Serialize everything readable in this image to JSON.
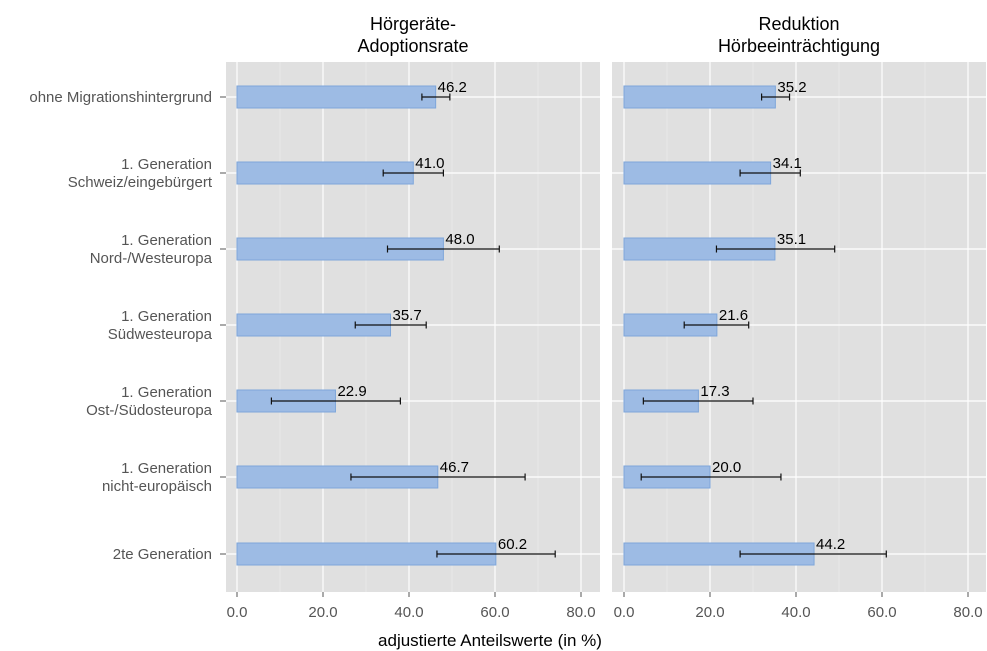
{
  "chart_data": {
    "type": "bar",
    "orientation": "horizontal",
    "xlabel": "adjustierte Anteilswerte (in %)",
    "xlim": [
      0,
      80
    ],
    "xticks": [
      "0.0",
      "20.0",
      "40.0",
      "60.0",
      "80.0"
    ],
    "grid": true,
    "categories": [
      [
        "ohne Migrationshintergrund"
      ],
      [
        "1. Generation",
        "Schweiz/eingebürgert"
      ],
      [
        "1. Generation",
        "Nord-/Westeuropa"
      ],
      [
        "1. Generation",
        "Südwesteuropa"
      ],
      [
        "1. Generation",
        "Ost-/Südosteuropa"
      ],
      [
        "1. Generation",
        "nicht-europäisch"
      ],
      [
        "2te Generation"
      ]
    ],
    "panels": [
      {
        "title": [
          "Hörgeräte-",
          "Adoptionsrate"
        ],
        "values": [
          46.2,
          41.0,
          48.0,
          35.7,
          22.9,
          46.7,
          60.2
        ],
        "labels": [
          "46.2",
          "41.0",
          "48.0",
          "35.7",
          "22.9",
          "46.7",
          "60.2"
        ],
        "ci_low": [
          43.0,
          34.0,
          35.0,
          27.5,
          8.0,
          26.5,
          46.5
        ],
        "ci_high": [
          49.5,
          48.0,
          61.0,
          44.0,
          38.0,
          67.0,
          74.0
        ]
      },
      {
        "title": [
          "Reduktion",
          "Hörbeeinträchtigung"
        ],
        "values": [
          35.2,
          34.1,
          35.1,
          21.6,
          17.3,
          20.0,
          44.2
        ],
        "labels": [
          "35.2",
          "34.1",
          "35.1",
          "21.6",
          "17.3",
          "20.0",
          "44.2"
        ],
        "ci_low": [
          32.0,
          27.0,
          21.5,
          14.0,
          4.5,
          4.0,
          27.0
        ],
        "ci_high": [
          38.5,
          41.0,
          49.0,
          29.0,
          30.0,
          36.5,
          61.0
        ]
      }
    ],
    "colors": {
      "bar": "#9dbbe4",
      "bar_edge": "#7ea6da",
      "panel": "#e0e0e0",
      "grid": "#ffffff"
    }
  }
}
